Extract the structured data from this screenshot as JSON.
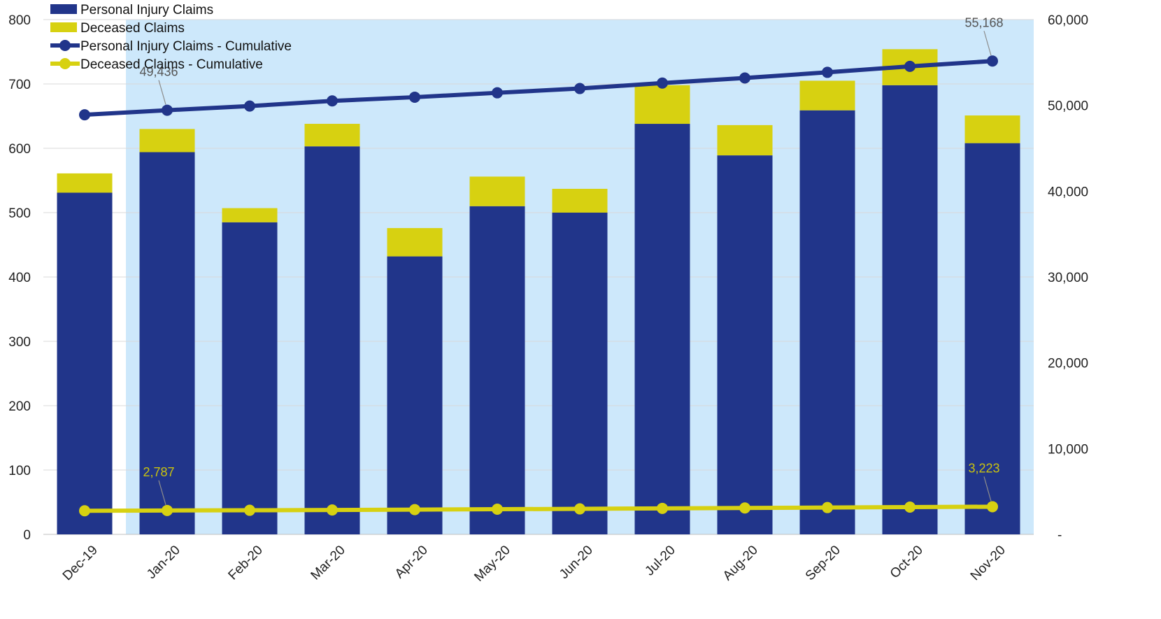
{
  "chart_data": {
    "type": "bar",
    "stacked": true,
    "categories": [
      "Dec-19",
      "Jan-20",
      "Feb-20",
      "Mar-20",
      "Apr-20",
      "May-20",
      "Jun-20",
      "Jul-20",
      "Aug-20",
      "Sep-20",
      "Oct-20",
      "Nov-20"
    ],
    "series": [
      {
        "name": "Personal Injury Claims",
        "kind": "bar",
        "axis": "left",
        "color": "#21358a",
        "values": [
          531,
          594,
          485,
          603,
          432,
          510,
          500,
          638,
          589,
          659,
          698,
          608
        ]
      },
      {
        "name": "Deceased Claims",
        "kind": "bar",
        "axis": "left",
        "color": "#d7d111",
        "values": [
          30,
          36,
          22,
          35,
          44,
          46,
          37,
          60,
          47,
          46,
          56,
          43
        ]
      },
      {
        "name": "Personal Injury Claims - Cumulative",
        "kind": "line",
        "axis": "right",
        "color": "#21358a",
        "values": [
          48905,
          49436,
          49921,
          50524,
          50956,
          51466,
          51966,
          52604,
          53193,
          53852,
          54550,
          55168
        ]
      },
      {
        "name": "Deceased Claims - Cumulative",
        "kind": "line",
        "axis": "right",
        "color": "#d7d111",
        "values": [
          2751,
          2787,
          2809,
          2844,
          2888,
          2934,
          2971,
          3031,
          3078,
          3124,
          3180,
          3223
        ]
      }
    ],
    "data_labels": [
      {
        "series": 2,
        "index": 1,
        "text": "49,436",
        "color": "#555555"
      },
      {
        "series": 2,
        "index": 11,
        "text": "55,168",
        "color": "#555555"
      },
      {
        "series": 3,
        "index": 1,
        "text": "2,787",
        "color": "#c9c20e"
      },
      {
        "series": 3,
        "index": 11,
        "text": "3,223",
        "color": "#c9c20e"
      }
    ],
    "y_left": {
      "min": 0,
      "max": 800,
      "ticks": [
        "0",
        "100",
        "200",
        "300",
        "400",
        "500",
        "600",
        "700",
        "800"
      ]
    },
    "y_right": {
      "min": 0,
      "max": 60000,
      "ticks": [
        "-",
        "10,000",
        "20,000",
        "30,000",
        "40,000",
        "50,000",
        "60,000"
      ]
    },
    "highlight": {
      "from": "Jan-20",
      "to": "Nov-20",
      "color": "#cde8fb"
    },
    "grid": true,
    "legend": "top-left"
  }
}
